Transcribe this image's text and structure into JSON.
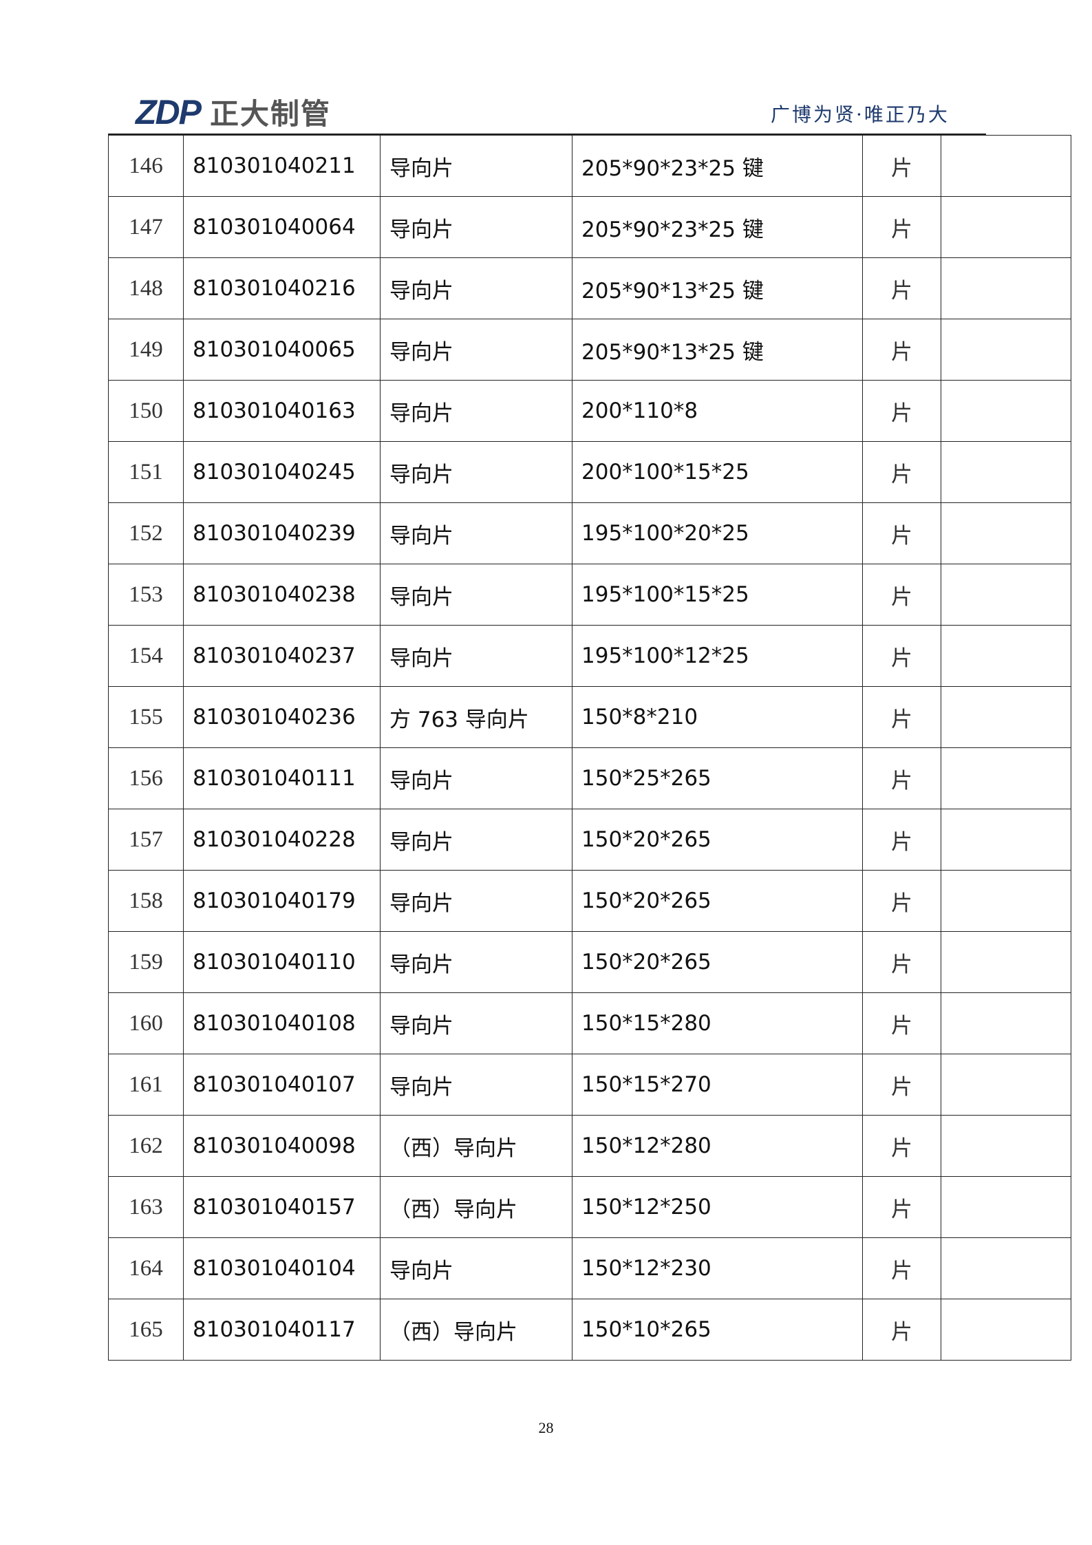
{
  "header": {
    "logo_mark": "ZDP",
    "logo_text": "正大制管",
    "slogan": "广博为贤·唯正乃大"
  },
  "colors": {
    "brand": "#1e3a6e"
  },
  "rows": [
    {
      "no": "146",
      "code": "810301040211",
      "name": "导向片",
      "spec": "205*90*23*25 键",
      "unit": "片",
      "note": ""
    },
    {
      "no": "147",
      "code": "810301040064",
      "name": "导向片",
      "spec": "205*90*23*25 键",
      "unit": "片",
      "note": ""
    },
    {
      "no": "148",
      "code": "810301040216",
      "name": "导向片",
      "spec": "205*90*13*25 键",
      "unit": "片",
      "note": ""
    },
    {
      "no": "149",
      "code": "810301040065",
      "name": "导向片",
      "spec": "205*90*13*25 键",
      "unit": "片",
      "note": ""
    },
    {
      "no": "150",
      "code": "810301040163",
      "name": "导向片",
      "spec": "200*110*8",
      "unit": "片",
      "note": ""
    },
    {
      "no": "151",
      "code": "810301040245",
      "name": "导向片",
      "spec": "200*100*15*25",
      "unit": "片",
      "note": ""
    },
    {
      "no": "152",
      "code": "810301040239",
      "name": "导向片",
      "spec": "195*100*20*25",
      "unit": "片",
      "note": ""
    },
    {
      "no": "153",
      "code": "810301040238",
      "name": "导向片",
      "spec": "195*100*15*25",
      "unit": "片",
      "note": ""
    },
    {
      "no": "154",
      "code": "810301040237",
      "name": "导向片",
      "spec": "195*100*12*25",
      "unit": "片",
      "note": ""
    },
    {
      "no": "155",
      "code": "810301040236",
      "name": "方 763 导向片",
      "spec": "150*8*210",
      "unit": "片",
      "note": ""
    },
    {
      "no": "156",
      "code": "810301040111",
      "name": "导向片",
      "spec": "150*25*265",
      "unit": "片",
      "note": ""
    },
    {
      "no": "157",
      "code": "810301040228",
      "name": "导向片",
      "spec": "150*20*265",
      "unit": "片",
      "note": ""
    },
    {
      "no": "158",
      "code": "810301040179",
      "name": "导向片",
      "spec": "150*20*265",
      "unit": "片",
      "note": ""
    },
    {
      "no": "159",
      "code": "810301040110",
      "name": "导向片",
      "spec": "150*20*265",
      "unit": "片",
      "note": ""
    },
    {
      "no": "160",
      "code": "810301040108",
      "name": "导向片",
      "spec": "150*15*280",
      "unit": "片",
      "note": ""
    },
    {
      "no": "161",
      "code": "810301040107",
      "name": "导向片",
      "spec": "150*15*270",
      "unit": "片",
      "note": ""
    },
    {
      "no": "162",
      "code": "810301040098",
      "name": "（西）导向片",
      "spec": "150*12*280",
      "unit": "片",
      "note": ""
    },
    {
      "no": "163",
      "code": "810301040157",
      "name": "（西）导向片",
      "spec": "150*12*250",
      "unit": "片",
      "note": ""
    },
    {
      "no": "164",
      "code": "810301040104",
      "name": "导向片",
      "spec": "150*12*230",
      "unit": "片",
      "note": ""
    },
    {
      "no": "165",
      "code": "810301040117",
      "name": "（西）导向片",
      "spec": "150*10*265",
      "unit": "片",
      "note": ""
    }
  ],
  "footer": {
    "page_number": "28"
  }
}
